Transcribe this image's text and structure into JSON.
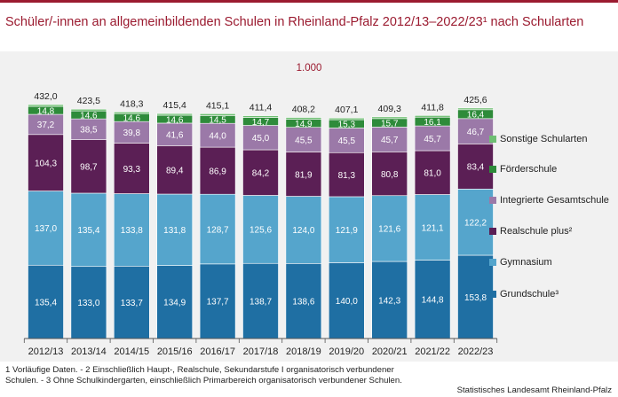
{
  "header": {
    "title": "Schüler/-innen an allgemeinbildenden Schulen in Rheinland-Pfalz 2012/13–2022/23¹ nach Schularten"
  },
  "colors": {
    "accent": "#9b1b30",
    "background": "#f1f1f1",
    "label_dark": "#222222",
    "label_light": "#ffffff"
  },
  "chart_data": {
    "type": "bar",
    "stacked": true,
    "unit_label": "1.000",
    "categories": [
      "2012/13",
      "2013/14",
      "2014/15",
      "2015/16",
      "2016/17",
      "2017/18",
      "2018/19",
      "2019/20",
      "2020/21",
      "2021/22",
      "2022/23"
    ],
    "series": [
      {
        "name": "Grundschule³",
        "color": "#1f6fa3",
        "values": [
          135.4,
          133.0,
          133.7,
          134.9,
          137.7,
          138.7,
          138.6,
          140.0,
          142.3,
          144.8,
          153.8
        ]
      },
      {
        "name": "Gymnasium",
        "color": "#55a5cc",
        "values": [
          137.0,
          135.4,
          133.8,
          131.8,
          128.7,
          125.6,
          124.0,
          121.9,
          121.6,
          121.1,
          122.2
        ]
      },
      {
        "name": "Realschule plus²",
        "color": "#5b1f55",
        "values": [
          104.3,
          98.7,
          93.3,
          89.4,
          86.9,
          84.2,
          81.9,
          81.3,
          80.8,
          81.0,
          83.4
        ]
      },
      {
        "name": "Integrierte Gesamtschule",
        "color": "#9b79a8",
        "values": [
          37.2,
          38.5,
          39.8,
          41.6,
          44.0,
          45.0,
          45.5,
          45.5,
          45.7,
          45.7,
          46.7
        ]
      },
      {
        "name": "Förderschule",
        "color": "#2e8b3a",
        "values": [
          14.8,
          14.6,
          14.6,
          14.6,
          14.5,
          14.7,
          14.9,
          15.3,
          15.7,
          16.1,
          16.4
        ]
      },
      {
        "name": "Sonstige Schularten",
        "color": "#6fbf73",
        "values": [
          3.3,
          3.3,
          3.1,
          3.1,
          3.3,
          3.2,
          3.3,
          3.1,
          3.2,
          3.1,
          3.1
        ]
      }
    ],
    "value_labels": [
      [
        "135,4",
        "133,0",
        "133,7",
        "134,9",
        "137,7",
        "138,7",
        "138,6",
        "140,0",
        "142,3",
        "144,8",
        "153,8"
      ],
      [
        "137,0",
        "135,4",
        "133,8",
        "131,8",
        "128,7",
        "125,6",
        "124,0",
        "121,9",
        "121,6",
        "121,1",
        "122,2"
      ],
      [
        "104,3",
        "98,7",
        "93,3",
        "89,4",
        "86,9",
        "84,2",
        "81,9",
        "81,3",
        "80,8",
        "81,0",
        "83,4"
      ],
      [
        "37,2",
        "38,5",
        "39,8",
        "41,6",
        "44,0",
        "45,0",
        "45,5",
        "45,5",
        "45,7",
        "45,7",
        "46,7"
      ],
      [
        "14,8",
        "14,6",
        "14,6",
        "14,6",
        "14,5",
        "14,7",
        "14,9",
        "15,3",
        "15,7",
        "16,1",
        "16,4"
      ]
    ],
    "totals": [
      432.0,
      423.5,
      418.3,
      415.4,
      415.1,
      411.4,
      408.2,
      407.1,
      409.3,
      411.8,
      425.6
    ],
    "total_labels": [
      "432,0",
      "423,5",
      "418,3",
      "415,4",
      "415,1",
      "411,4",
      "408,2",
      "407,1",
      "409,3",
      "411,8",
      "425,6"
    ],
    "legend_order": [
      "Sonstige Schularten",
      "Förderschule",
      "Integrierte Gesamtschule",
      "Realschule plus²",
      "Gymnasium",
      "Grundschule³"
    ],
    "legend_position": "right",
    "ylim": [
      0,
      440
    ]
  },
  "footnote": {
    "line1": "1 Vorläufige  Daten.  - 2 Einschließlich  Haupt-,  Realschule,  Sekundarstufe  I organisatorisch  verbundener",
    "line2": "Schulen. - 3 Ohne Schulkindergarten,  einschließlich Primarbereich organisatorisch  verbundener  Schulen."
  },
  "source": "Statistisches Landesamt Rheinland-Pfalz"
}
